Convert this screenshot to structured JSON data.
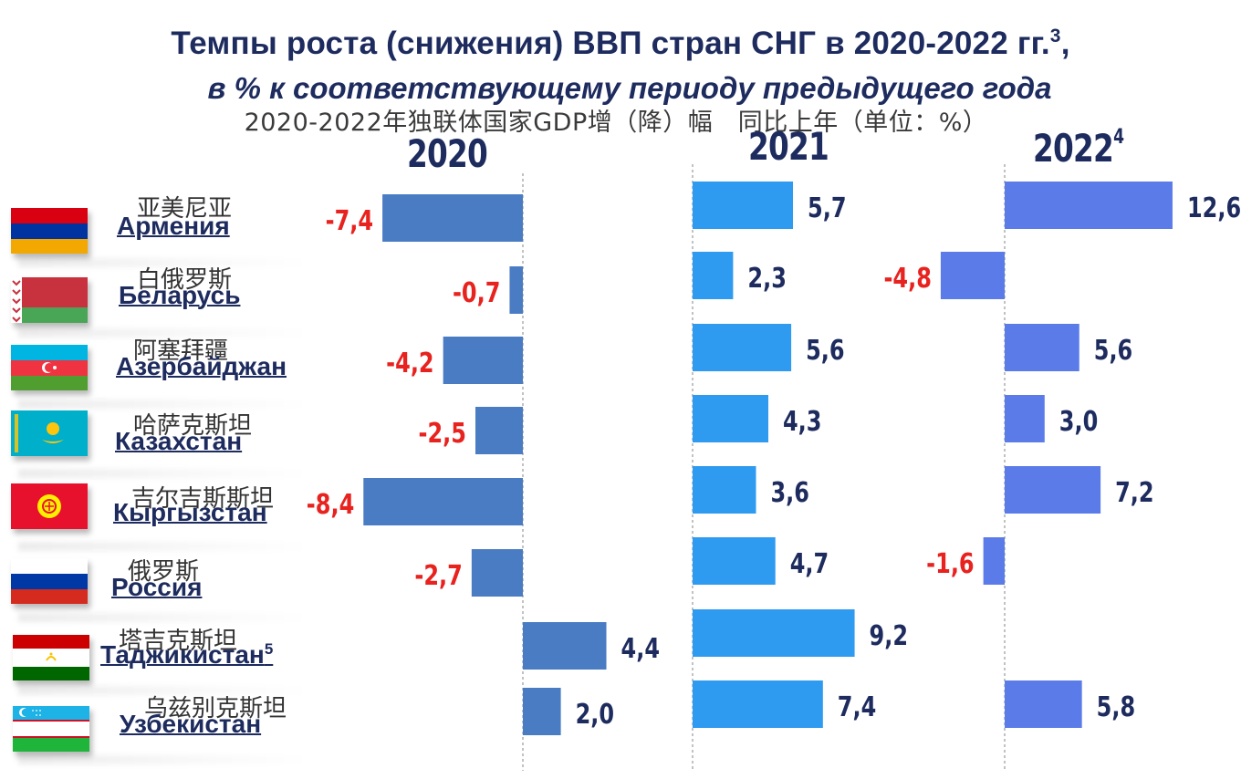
{
  "title": "Темпы роста (снижения) ВВП стран СНГ в 2020-2022 гг.",
  "title_sup": "3",
  "title_comma": ",",
  "subtitle": "в % к соответствующему периоду предыдущего года",
  "cn_subtitle": "2020-2022年独联体国家GDP增（降）幅　同比上年（单位：%）",
  "countries": [
    {
      "ru": "Армения",
      "ru_sup": "",
      "cn": "亚美尼亚",
      "flag": "armenia-flag-icon"
    },
    {
      "ru": "Беларусь",
      "ru_sup": "",
      "cn": "白俄罗斯",
      "flag": "belarus-flag-icon"
    },
    {
      "ru": "Азербайджан",
      "ru_sup": "",
      "cn": "阿塞拜疆",
      "flag": "azerbaijan-flag-icon"
    },
    {
      "ru": "Казахстан",
      "ru_sup": "",
      "cn": "哈萨克斯坦",
      "flag": "kazakhstan-flag-icon"
    },
    {
      "ru": "Кыргызстан",
      "ru_sup": "",
      "cn": "吉尔吉斯斯坦",
      "flag": "kyrgyzstan-flag-icon"
    },
    {
      "ru": "Россия",
      "ru_sup": "",
      "cn": "俄罗斯",
      "flag": "russia-flag-icon"
    },
    {
      "ru": "Таджикистан",
      "ru_sup": "5",
      "cn": "塔吉克斯坦",
      "flag": "tajikistan-flag-icon"
    },
    {
      "ru": "Узбекистан",
      "ru_sup": "",
      "cn": "乌兹别克斯坦",
      "flag": "uzbekistan-flag-icon"
    }
  ],
  "chart_data": [
    {
      "type": "bar",
      "orientation": "horizontal",
      "title": "2020",
      "title_sup": "",
      "categories": [
        "Армения",
        "Беларусь",
        "Азербайджан",
        "Казахстан",
        "Кыргызстан",
        "Россия",
        "Таджикистан",
        "Узбекистан"
      ],
      "values": [
        -7.4,
        -0.7,
        -4.2,
        -2.5,
        -8.4,
        -2.7,
        4.4,
        2.0
      ],
      "labels": [
        "-7,4",
        "-0,7",
        "-4,2",
        "-2,5",
        "-8,4",
        "-2,7",
        "4,4",
        "2,0"
      ],
      "color": "#4a7cc4"
    },
    {
      "type": "bar",
      "orientation": "horizontal",
      "title": "2021",
      "title_sup": "",
      "categories": [
        "Армения",
        "Беларусь",
        "Азербайджан",
        "Казахстан",
        "Кыргызстан",
        "Россия",
        "Таджикистан",
        "Узбекистан"
      ],
      "values": [
        5.7,
        2.3,
        5.6,
        4.3,
        3.6,
        4.7,
        9.2,
        7.4
      ],
      "labels": [
        "5,7",
        "2,3",
        "5,6",
        "4,3",
        "3,6",
        "4,7",
        "9,2",
        "7,4"
      ],
      "color": "#2e9af0"
    },
    {
      "type": "bar",
      "orientation": "horizontal",
      "title": "2022",
      "title_sup": "4",
      "categories": [
        "Армения",
        "Беларусь",
        "Азербайджан",
        "Казахстан",
        "Кыргызстан",
        "Россия",
        "Таджикистан",
        "Узбекистан"
      ],
      "values": [
        12.6,
        -4.8,
        5.6,
        3.0,
        7.2,
        -1.6,
        null,
        5.8
      ],
      "labels": [
        "12,6",
        "-4,8",
        "5,6",
        "3,0",
        "7,2",
        "-1,6",
        "",
        "5,8"
      ],
      "color": "#5b7ce8"
    }
  ],
  "colors": {
    "title": "#1d2b5e",
    "label_positive": "#1d2b5e",
    "label_negative": "#e8221e",
    "axis": "#9a9a9a"
  }
}
